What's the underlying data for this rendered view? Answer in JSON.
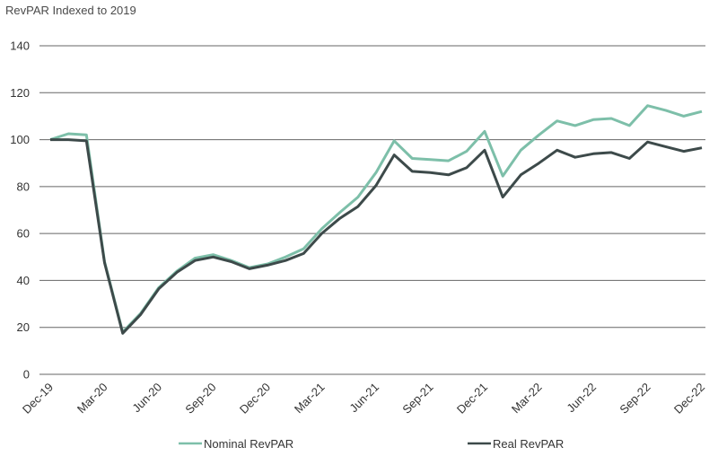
{
  "chart_data": {
    "type": "line",
    "title": "RevPAR Indexed to 2019",
    "xlabel": "",
    "ylabel": "",
    "ylim": [
      0,
      140
    ],
    "yticks": [
      0,
      20,
      40,
      60,
      80,
      100,
      120,
      140
    ],
    "grid": true,
    "legend_position": "bottom",
    "x": [
      "Dec-19",
      "Jan-20",
      "Feb-20",
      "Mar-20",
      "Apr-20",
      "May-20",
      "Jun-20",
      "Jul-20",
      "Aug-20",
      "Sep-20",
      "Oct-20",
      "Nov-20",
      "Dec-20",
      "Jan-21",
      "Feb-21",
      "Mar-21",
      "Apr-21",
      "May-21",
      "Jun-21",
      "Jul-21",
      "Aug-21",
      "Sep-21",
      "Oct-21",
      "Nov-21",
      "Dec-21",
      "Jan-22",
      "Feb-22",
      "Mar-22",
      "Apr-22",
      "May-22",
      "Jun-22",
      "Jul-22",
      "Aug-22",
      "Sep-22",
      "Oct-22",
      "Nov-22",
      "Dec-22"
    ],
    "x_tick_labels": [
      "Dec-19",
      "Mar-20",
      "Jun-20",
      "Sep-20",
      "Dec-20",
      "Mar-21",
      "Jun-21",
      "Sep-21",
      "Dec-21",
      "Mar-22",
      "Jun-22",
      "Sep-22",
      "Dec-22"
    ],
    "series": [
      {
        "name": "Nominal RevPAR",
        "color": "#7dbfa9",
        "values": [
          100,
          102.5,
          102,
          48,
          18,
          26,
          37,
          44,
          49.5,
          51,
          48.5,
          45.5,
          47,
          50,
          53.5,
          62,
          69,
          75.5,
          86,
          99.5,
          92,
          91.5,
          91,
          95,
          103.5,
          84.5,
          95.5,
          102,
          108,
          106,
          108.5,
          109,
          106,
          114.5,
          112.5,
          110,
          112
        ]
      },
      {
        "name": "Real RevPAR",
        "color": "#3d4a4a",
        "values": [
          100,
          100,
          99.5,
          47.5,
          17.5,
          25.5,
          36.5,
          43.5,
          48.5,
          50,
          48,
          45,
          46.5,
          48.5,
          51.5,
          60,
          66.5,
          71.5,
          80.5,
          93.5,
          86.5,
          86,
          85,
          88,
          95.5,
          75.5,
          85,
          90,
          95.5,
          92.5,
          94,
          94.5,
          92,
          99,
          97,
          95,
          96.5
        ]
      }
    ]
  }
}
